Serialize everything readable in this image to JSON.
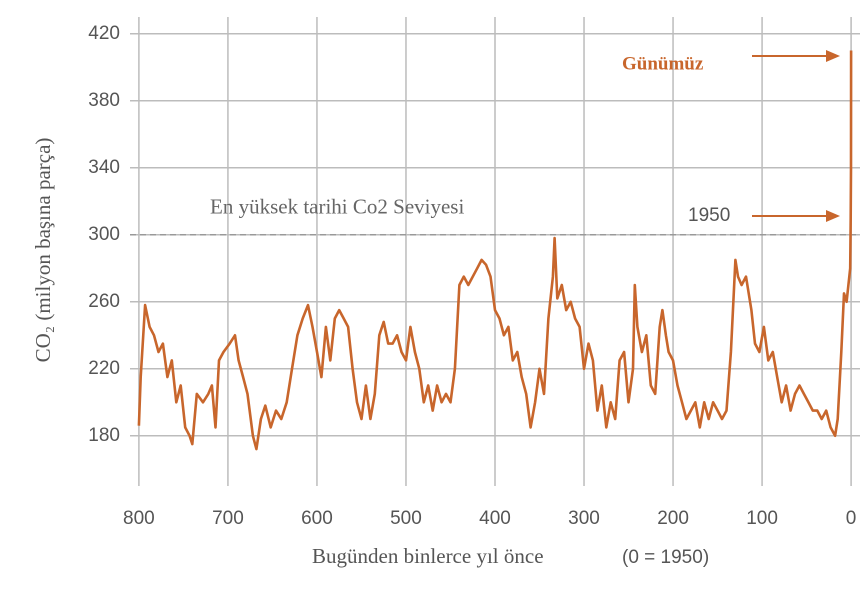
{
  "chart_data": {
    "type": "line",
    "ylabel": "CO₂ (milyon başına parça)",
    "xlabel": "Bugünden binlerce yıl önce",
    "xlabel_note": "(0 = 1950)",
    "reference_line": {
      "value": 300,
      "label": "En yüksek tarihi Co2 Seviyesi"
    },
    "annotations": [
      {
        "text": "Günümüz"
      },
      {
        "text": "1950"
      }
    ],
    "xlim": [
      810,
      -10
    ],
    "ylim": [
      150,
      430
    ],
    "xticks": [
      800,
      700,
      600,
      500,
      400,
      300,
      200,
      100,
      0
    ],
    "yticks": [
      180,
      220,
      260,
      300,
      340,
      380,
      420
    ],
    "grid": true,
    "x": [
      800,
      798,
      793,
      788,
      783,
      778,
      773,
      768,
      763,
      758,
      753,
      748,
      743,
      740,
      735,
      728,
      722,
      718,
      714,
      710,
      705,
      698,
      692,
      688,
      683,
      678,
      672,
      668,
      663,
      658,
      652,
      646,
      640,
      634,
      628,
      622,
      616,
      610,
      605,
      600,
      595,
      590,
      585,
      580,
      575,
      570,
      565,
      560,
      555,
      550,
      545,
      540,
      535,
      530,
      525,
      520,
      515,
      510,
      505,
      500,
      495,
      490,
      485,
      480,
      475,
      470,
      465,
      460,
      455,
      450,
      445,
      440,
      435,
      430,
      420,
      415,
      410,
      405,
      400,
      395,
      390,
      385,
      380,
      375,
      370,
      365,
      360,
      355,
      350,
      345,
      340,
      335,
      333,
      330,
      325,
      320,
      315,
      310,
      305,
      300,
      295,
      290,
      285,
      280,
      275,
      270,
      265,
      260,
      255,
      250,
      245,
      243,
      240,
      235,
      230,
      225,
      220,
      215,
      212,
      208,
      205,
      200,
      195,
      190,
      185,
      180,
      175,
      170,
      165,
      160,
      155,
      150,
      145,
      140,
      135,
      130,
      127,
      123,
      118,
      112,
      108,
      103,
      98,
      93,
      88,
      83,
      78,
      73,
      68,
      63,
      58,
      53,
      48,
      43,
      38,
      33,
      28,
      23,
      18,
      15,
      11,
      8,
      5,
      3,
      1,
      0.5,
      0.1,
      0
    ],
    "series": [
      {
        "name": "CO₂",
        "color": "#c8662c",
        "values": [
          186,
          215,
          258,
          245,
          240,
          230,
          235,
          215,
          225,
          200,
          210,
          185,
          180,
          175,
          205,
          200,
          205,
          210,
          185,
          225,
          230,
          235,
          240,
          225,
          215,
          205,
          180,
          172,
          190,
          198,
          185,
          195,
          190,
          200,
          220,
          240,
          250,
          258,
          245,
          230,
          215,
          245,
          225,
          250,
          255,
          250,
          245,
          220,
          200,
          190,
          210,
          190,
          205,
          240,
          248,
          235,
          235,
          240,
          230,
          225,
          245,
          230,
          220,
          200,
          210,
          195,
          210,
          200,
          205,
          200,
          220,
          270,
          275,
          270,
          280,
          285,
          282,
          275,
          255,
          250,
          240,
          245,
          225,
          230,
          215,
          205,
          185,
          200,
          220,
          205,
          250,
          275,
          298,
          262,
          270,
          255,
          260,
          250,
          245,
          220,
          235,
          225,
          195,
          210,
          185,
          200,
          190,
          225,
          230,
          200,
          220,
          270,
          245,
          230,
          240,
          210,
          205,
          245,
          255,
          240,
          230,
          225,
          210,
          200,
          190,
          195,
          200,
          185,
          200,
          190,
          200,
          195,
          190,
          195,
          230,
          285,
          275,
          270,
          275,
          255,
          235,
          230,
          245,
          225,
          230,
          215,
          200,
          210,
          195,
          205,
          210,
          205,
          200,
          195,
          195,
          190,
          195,
          185,
          180,
          190,
          230,
          265,
          260,
          270,
          280,
          310,
          340,
          410
        ]
      }
    ]
  }
}
